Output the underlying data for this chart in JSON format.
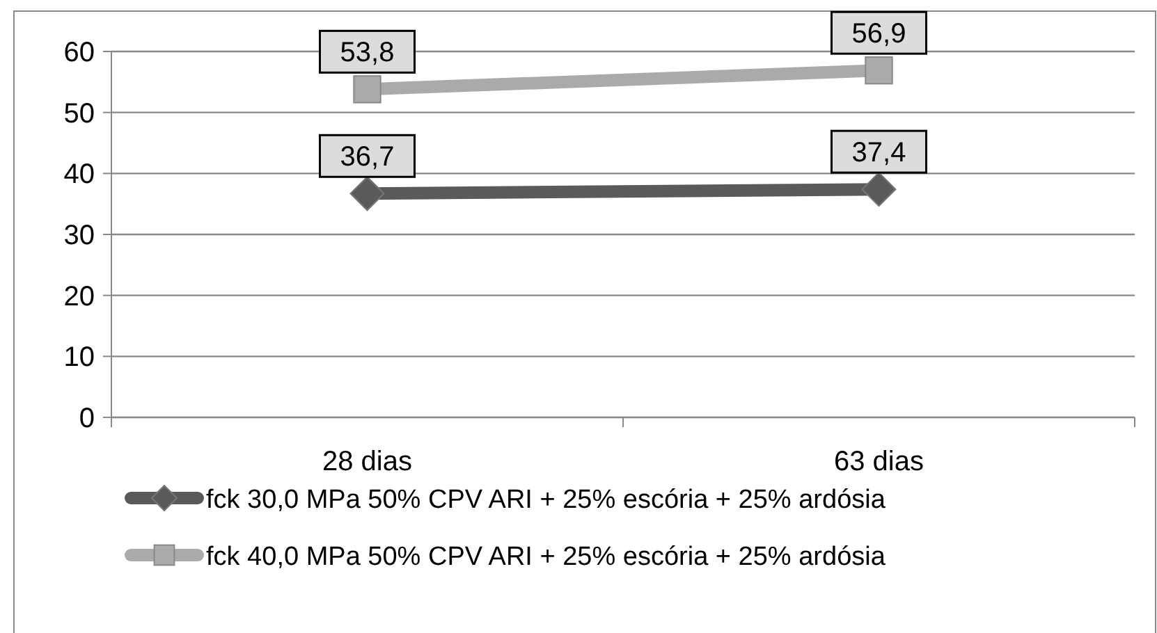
{
  "chart_data": {
    "type": "line",
    "categories": [
      "28 dias",
      "63 dias"
    ],
    "series": [
      {
        "name": "fck 30,0 MPa 50% CPV ARI + 25% escória + 25% ardósia",
        "color": "#5a5a5a",
        "values": [
          36.7,
          37.4
        ],
        "value_labels": [
          "36,7",
          "37,4"
        ],
        "marker": "diamond"
      },
      {
        "name": "fck 40,0 MPa 50% CPV ARI + 25% escória + 25% ardósia",
        "color": "#aaaaaa",
        "values": [
          53.8,
          56.9
        ],
        "value_labels": [
          "53,8",
          "56,9"
        ],
        "marker": "square"
      }
    ],
    "ylim": [
      0,
      60
    ],
    "yticks": [
      0,
      10,
      20,
      30,
      40,
      50,
      60
    ],
    "grid": "y",
    "legend": "bottom"
  }
}
